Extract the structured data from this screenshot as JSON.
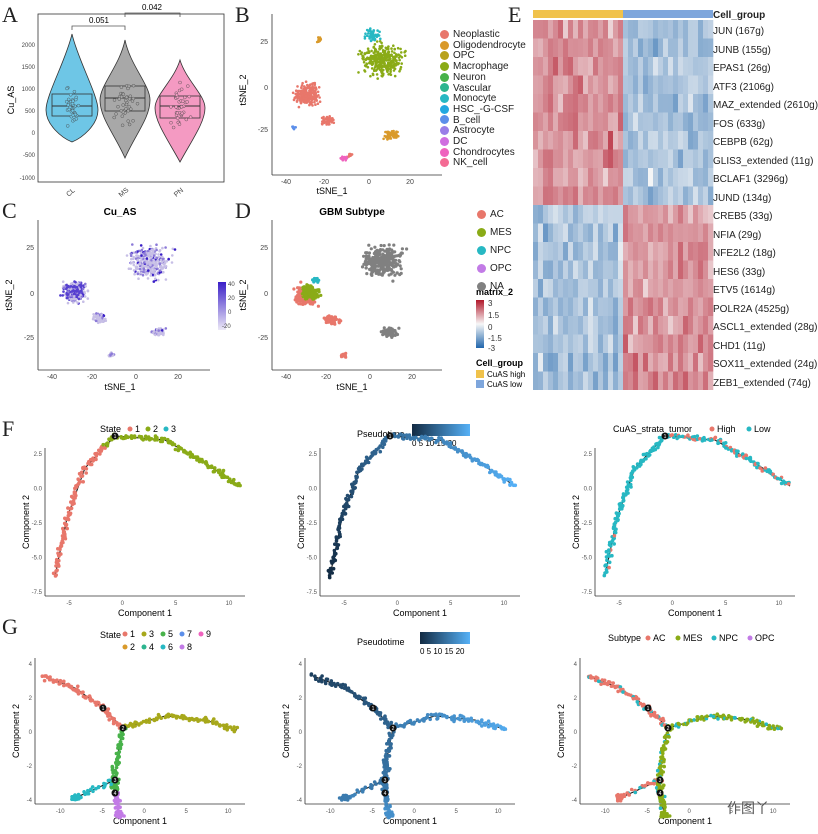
{
  "labels": {
    "A": "A",
    "B": "B",
    "C": "C",
    "D": "D",
    "E": "E",
    "F": "F",
    "G": "G"
  },
  "panelA": {
    "ylabel": "Cu_AS",
    "categories": [
      "CL",
      "MS",
      "PN"
    ],
    "yticks": [
      "2000",
      "1500",
      "1000",
      "500",
      "0",
      "-500",
      "-1000"
    ],
    "p1": "0.051",
    "p2": "0.042",
    "colors": [
      "#6ec6e6",
      "#9a9a9a",
      "#f49ac2"
    ]
  },
  "panelB": {
    "xlabel": "tSNE_1",
    "ylabel": "tSNE_2",
    "xticks": [
      "-40",
      "-20",
      "0",
      "20"
    ],
    "yticks": [
      "25",
      "0",
      "-25"
    ],
    "legend": [
      {
        "label": "Neoplastic",
        "color": "#e8776b"
      },
      {
        "label": "Oligodendrocyte",
        "color": "#d99a2b"
      },
      {
        "label": "OPC",
        "color": "#b8a21c"
      },
      {
        "label": "Macrophage",
        "color": "#8aab17"
      },
      {
        "label": "Neuron",
        "color": "#48b24a"
      },
      {
        "label": "Vascular",
        "color": "#2db58f"
      },
      {
        "label": "Monocyte",
        "color": "#27b8c3"
      },
      {
        "label": "HSC_-G-CSF",
        "color": "#22a8e0"
      },
      {
        "label": "B_cell",
        "color": "#5c8fea"
      },
      {
        "label": "Astrocyte",
        "color": "#9a7ee8"
      },
      {
        "label": "DC",
        "color": "#d06ee0"
      },
      {
        "label": "Chondrocytes",
        "color": "#ef63be"
      },
      {
        "label": "NK_cell",
        "color": "#f46b94"
      }
    ]
  },
  "panelC": {
    "title": "Cu_AS",
    "xlabel": "tSNE_1",
    "ylabel": "tSNE_2",
    "xticks": [
      "-40",
      "-20",
      "0",
      "20"
    ],
    "yticks": [
      "25",
      "0",
      "-25"
    ],
    "scale": [
      "40",
      "20",
      "0",
      "-20"
    ]
  },
  "panelD": {
    "title": "GBM Subtype",
    "xlabel": "tSNE_1",
    "ylabel": "tSNE_2",
    "xticks": [
      "-40",
      "-20",
      "0",
      "20"
    ],
    "yticks": [
      "25",
      "0",
      "-25"
    ],
    "legend": [
      {
        "label": "AC",
        "color": "#e8776b"
      },
      {
        "label": "MES",
        "color": "#8aab17"
      },
      {
        "label": "NPC",
        "color": "#27b8c3"
      },
      {
        "label": "OPC",
        "color": "#c27be6"
      },
      {
        "label": "NA",
        "color": "#808080"
      }
    ],
    "matrix_title": "matrix_2",
    "matrix_ticks": [
      "3",
      "1.5",
      "0",
      "-1.5",
      "-3"
    ],
    "cell_group_title": "Cell_group",
    "cell_groups": [
      {
        "label": "CuAS high",
        "color": "#f0c24b"
      },
      {
        "label": "CuAS low",
        "color": "#7ea6dc"
      }
    ]
  },
  "panelE": {
    "header": "Cell_group",
    "genes": [
      "JUN (167g)",
      "JUNB (155g)",
      "EPAS1 (26g)",
      "ATF3 (2106g)",
      "MAZ_extended (2610g)",
      "FOS (633g)",
      "CEBPB (62g)",
      "GLIS3_extended (11g)",
      "BCLAF1 (3296g)",
      "JUND (134g)",
      "CREB5 (33g)",
      "NFIA (29g)",
      "NFE2L2 (18g)",
      "HES6 (33g)",
      "ETV5 (1614g)",
      "POLR2A (4525g)",
      "ASCL1_extended (28g)",
      "CHD1 (11g)",
      "SOX11_extended (24g)",
      "ZEB1_extended (74g)"
    ]
  },
  "panelF": {
    "xlabel": "Component 1",
    "ylabel": "Component 2",
    "state_title": "State",
    "state_items": [
      {
        "label": "1",
        "color": "#e8776b"
      },
      {
        "label": "2",
        "color": "#8aab17"
      },
      {
        "label": "3",
        "color": "#27b8c3"
      }
    ],
    "pseudo_title": "Pseudotime",
    "pseudo_ticks": "0 5 10 15 20",
    "strata_title": "CuAS_strata_tumor",
    "strata_items": [
      {
        "label": "High",
        "color": "#e8776b"
      },
      {
        "label": "Low",
        "color": "#27b8c3"
      }
    ],
    "xticks": [
      "-5",
      "0",
      "5",
      "10"
    ],
    "yticks": [
      "2.5",
      "0.0",
      "-2.5",
      "-5.0",
      "-7.5"
    ]
  },
  "panelG": {
    "xlabel": "Component 1",
    "ylabel": "Component 2",
    "state_title": "State",
    "state_items": [
      {
        "label": "1",
        "color": "#e8776b"
      },
      {
        "label": "2",
        "color": "#d99a2b"
      },
      {
        "label": "3",
        "color": "#a7a81b"
      },
      {
        "label": "4",
        "color": "#2db58f"
      },
      {
        "label": "5",
        "color": "#48b24a"
      },
      {
        "label": "6",
        "color": "#27b8c3"
      },
      {
        "label": "7",
        "color": "#5c8fea"
      },
      {
        "label": "8",
        "color": "#c27be6"
      },
      {
        "label": "9",
        "color": "#ef63be"
      }
    ],
    "pseudo_title": "Pseudotime",
    "pseudo_ticks": "0 5 10 15 20",
    "subtype_title": "Subtype",
    "subtype_items": [
      {
        "label": "AC",
        "color": "#e8776b"
      },
      {
        "label": "MES",
        "color": "#8aab17"
      },
      {
        "label": "NPC",
        "color": "#27b8c3"
      },
      {
        "label": "OPC",
        "color": "#c27be6"
      }
    ],
    "xticks": [
      "-10",
      "-5",
      "0",
      "5",
      "10"
    ],
    "yticks": [
      "4",
      "2",
      "0",
      "-2",
      "-4"
    ],
    "watermark": "作图丫"
  }
}
